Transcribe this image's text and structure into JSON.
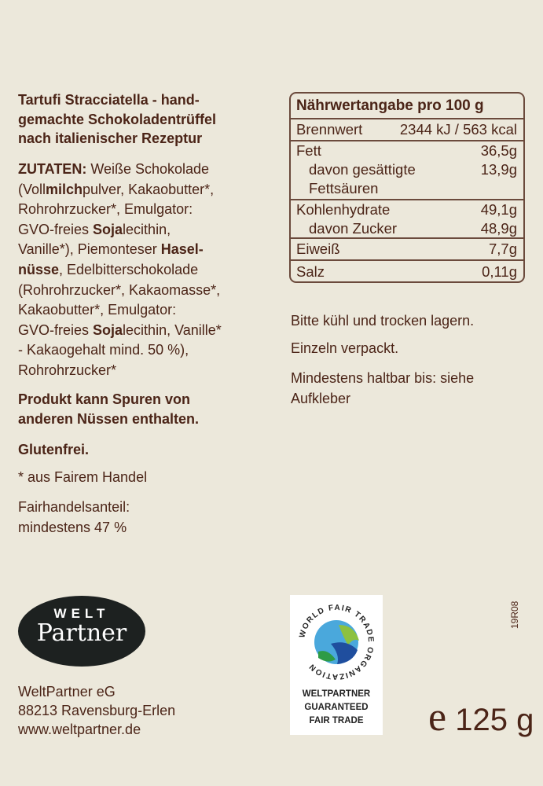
{
  "title_lines": [
    "Tartufi Stracciatella - hand-",
    "gemachte Schokoladentrüffel",
    "nach italienischer Rezeptur"
  ],
  "ingredients_lines": [
    [
      {
        "t": "ZUTATEN:",
        "b": true
      },
      {
        "t": " Weiße Schokolade"
      }
    ],
    [
      {
        "t": "(Voll"
      },
      {
        "t": "milch",
        "b": true
      },
      {
        "t": "pulver, Kakaobutter*,"
      }
    ],
    [
      {
        "t": "Rohrohrzucker*, Emulgator:"
      }
    ],
    [
      {
        "t": "GVO-freies "
      },
      {
        "t": "Soja",
        "b": true
      },
      {
        "t": "lecithin,"
      }
    ],
    [
      {
        "t": "Vanille*), Piemonteser "
      },
      {
        "t": "Hasel-",
        "b": true
      }
    ],
    [
      {
        "t": "nüsse",
        "b": true
      },
      {
        "t": ", Edelbitterschokolade"
      }
    ],
    [
      {
        "t": "(Rohrohrzucker*, Kakaomasse*,"
      }
    ],
    [
      {
        "t": "Kakaobutter*, Emulgator:"
      }
    ],
    [
      {
        "t": "GVO-freies "
      },
      {
        "t": "Soja",
        "b": true
      },
      {
        "t": "lecithin, Vanille*"
      }
    ],
    [
      {
        "t": "- Kakaogehalt mind. 50 %),"
      }
    ],
    [
      {
        "t": "Rohrohrzucker*"
      }
    ]
  ],
  "allergen_lines": [
    "Produkt kann Spuren von",
    "anderen Nüssen enthalten."
  ],
  "gluten": "Glutenfrei.",
  "fairtrade_note": "* aus Fairem Handel",
  "fair_share_lines": [
    "Fairhandelsanteil:",
    "mindestens 47 %"
  ],
  "nutrition": {
    "title": "Nährwertangabe pro 100 g",
    "energy_label": "Brennwert",
    "energy_value": "2344 kJ / 563 kcal",
    "fat_label": "Fett",
    "fat_value": "36,5g",
    "sat_label_1": "davon gesättigte",
    "sat_label_2": "Fettsäuren",
    "sat_value": "13,9g",
    "carb_label": "Kohlenhydrate",
    "carb_value": "49,1g",
    "sugar_label": "davon Zucker",
    "sugar_value": "48,9g",
    "protein_label": "Eiweiß",
    "protein_value": "7,7g",
    "salt_label": "Salz",
    "salt_value": "0,11g"
  },
  "storage": "Bitte kühl und trocken lagern.",
  "packaging": "Einzeln verpackt.",
  "best_before_lines": [
    "Mindestens haltbar bis: siehe",
    "Aufkleber"
  ],
  "logo": {
    "top": "WELT",
    "bottom": "Partner"
  },
  "address": [
    "WeltPartner eG",
    "88213 Ravensburg-Erlen",
    "www.weltpartner.de"
  ],
  "wfto": {
    "ring": "WORLD FAIR TRADE ORGANIZATION",
    "lines": [
      "WELTPARTNER",
      "GUARANTEED",
      "FAIR TRADE"
    ]
  },
  "code": "19R08",
  "weight": {
    "mark": "e",
    "value": "125 g"
  },
  "colors": {
    "background": "#ece8db",
    "text": "#4b2417"
  }
}
